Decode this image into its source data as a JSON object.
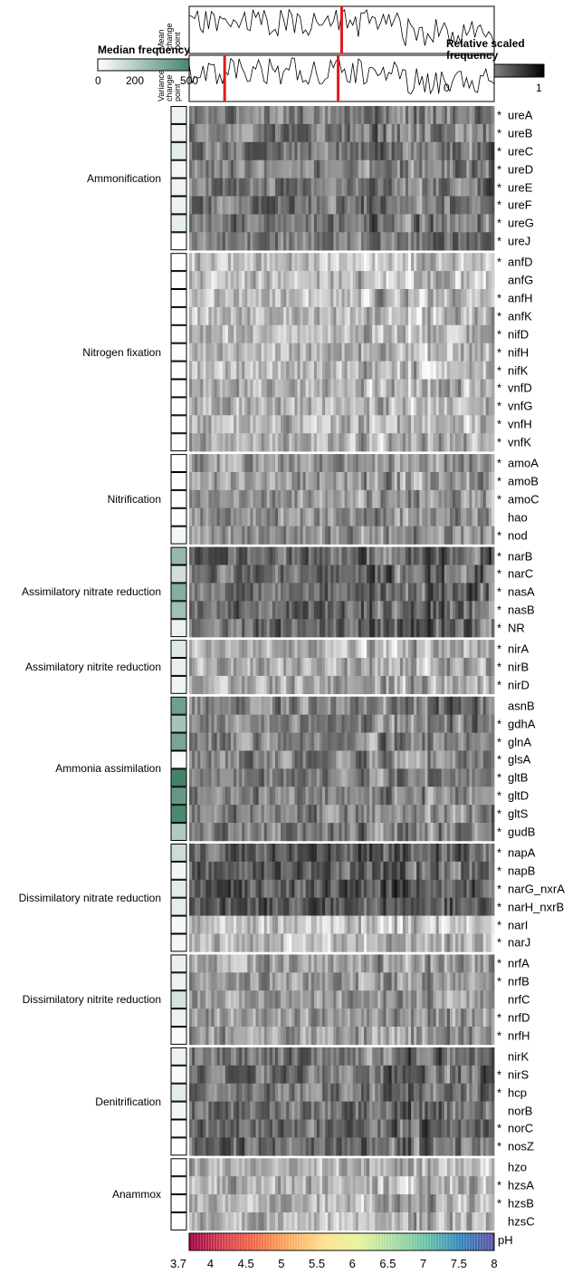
{
  "legends": {
    "median": {
      "title": "Median frequency",
      "ticks": [
        "0",
        "200",
        "500"
      ],
      "min": 0,
      "max": 600,
      "color_low": "#ffffff",
      "color_high": "#3f8064"
    },
    "relative": {
      "title": "Relative scaled frequency",
      "ticks": [
        "0",
        "1"
      ],
      "color_low": "#ffffff",
      "color_high": "#000000"
    }
  },
  "panels": {
    "mean": {
      "label": "Mean change point",
      "changepoints_ph": [
        5.85
      ]
    },
    "variance": {
      "label": "Variance change point",
      "changepoints_ph": [
        4.2,
        5.8
      ]
    }
  },
  "ph_axis": {
    "label": "pH",
    "ticks": [
      "3.7",
      "4",
      "4.5",
      "5",
      "5.5",
      "6",
      "6.5",
      "7",
      "7.5",
      "8"
    ],
    "min": 3.7,
    "max": 8
  },
  "chart_data": {
    "type": "heatmap",
    "x_variable": "pH",
    "groups": [
      {
        "name": "Ammonification",
        "genes": [
          {
            "name": "ureA",
            "sig": "*",
            "median": 60
          },
          {
            "name": "ureB",
            "sig": "*",
            "median": 50
          },
          {
            "name": "ureC",
            "sig": "*",
            "median": 90
          },
          {
            "name": "ureD",
            "sig": "*",
            "median": 40
          },
          {
            "name": "ureE",
            "sig": "*",
            "median": 50
          },
          {
            "name": "ureF",
            "sig": "*",
            "median": 60
          },
          {
            "name": "ureG",
            "sig": "*",
            "median": 80
          },
          {
            "name": "ureJ",
            "sig": "*",
            "median": 10
          }
        ]
      },
      {
        "name": "Nitrogen fixation",
        "genes": [
          {
            "name": "anfD",
            "sig": "*",
            "median": 5
          },
          {
            "name": "anfG",
            "sig": "",
            "median": 5
          },
          {
            "name": "anfH",
            "sig": "*",
            "median": 5
          },
          {
            "name": "anfK",
            "sig": "*",
            "median": 5
          },
          {
            "name": "nifD",
            "sig": "*",
            "median": 10
          },
          {
            "name": "nifH",
            "sig": "*",
            "median": 15
          },
          {
            "name": "nifK",
            "sig": "*",
            "median": 10
          },
          {
            "name": "vnfD",
            "sig": "*",
            "median": 5
          },
          {
            "name": "vnfG",
            "sig": "*",
            "median": 5
          },
          {
            "name": "vnfH",
            "sig": "*",
            "median": 5
          },
          {
            "name": "vnfK",
            "sig": "*",
            "median": 5
          }
        ]
      },
      {
        "name": "Nitrification",
        "genes": [
          {
            "name": "amoA",
            "sig": "*",
            "median": 10
          },
          {
            "name": "amoB",
            "sig": "*",
            "median": 10
          },
          {
            "name": "amoC",
            "sig": "*",
            "median": 10
          },
          {
            "name": "hao",
            "sig": "",
            "median": 5
          },
          {
            "name": "nod",
            "sig": "*",
            "median": 40
          }
        ]
      },
      {
        "name": "Assimilatory nitrate reduction",
        "genes": [
          {
            "name": "narB",
            "sig": "*",
            "median": 330
          },
          {
            "name": "narC",
            "sig": "*",
            "median": 150
          },
          {
            "name": "nasA",
            "sig": "*",
            "median": 380
          },
          {
            "name": "nasB",
            "sig": "*",
            "median": 300
          },
          {
            "name": "NR",
            "sig": "*",
            "median": 60
          }
        ]
      },
      {
        "name": "Assimilatory nitrite reduction",
        "genes": [
          {
            "name": "nirA",
            "sig": "*",
            "median": 100
          },
          {
            "name": "nirB",
            "sig": "*",
            "median": 70
          },
          {
            "name": "nirD",
            "sig": "*",
            "median": 50
          }
        ]
      },
      {
        "name": "Ammonia assimilation",
        "genes": [
          {
            "name": "asnB",
            "sig": "",
            "median": 450
          },
          {
            "name": "gdhA",
            "sig": "*",
            "median": 280
          },
          {
            "name": "glnA",
            "sig": "*",
            "median": 420
          },
          {
            "name": "glsA",
            "sig": "*",
            "median": 20
          },
          {
            "name": "gltB",
            "sig": "*",
            "median": 590
          },
          {
            "name": "gltD",
            "sig": "*",
            "median": 480
          },
          {
            "name": "gltS",
            "sig": "*",
            "median": 560
          },
          {
            "name": "gudB",
            "sig": "*",
            "median": 250
          }
        ]
      },
      {
        "name": "Dissimilatory nitrate reduction",
        "genes": [
          {
            "name": "napA",
            "sig": "*",
            "median": 160
          },
          {
            "name": "napB",
            "sig": "*",
            "median": 40
          },
          {
            "name": "narG_nxrA",
            "sig": "*",
            "median": 90
          },
          {
            "name": "narH_nxrB",
            "sig": "*",
            "median": 80
          },
          {
            "name": "narI",
            "sig": "*",
            "median": 30
          },
          {
            "name": "narJ",
            "sig": "*",
            "median": 40
          }
        ]
      },
      {
        "name": "Dissimilatory nitrite reduction",
        "genes": [
          {
            "name": "nrfA",
            "sig": "*",
            "median": 70
          },
          {
            "name": "nrfB",
            "sig": "*",
            "median": 60
          },
          {
            "name": "nrfC",
            "sig": "",
            "median": 130
          },
          {
            "name": "nrfD",
            "sig": "*",
            "median": 60
          },
          {
            "name": "nrfH",
            "sig": "*",
            "median": 20
          }
        ]
      },
      {
        "name": "Denitrification",
        "genes": [
          {
            "name": "nirK",
            "sig": "",
            "median": 60
          },
          {
            "name": "nirS",
            "sig": "*",
            "median": 20
          },
          {
            "name": "hcp",
            "sig": "*",
            "median": 90
          },
          {
            "name": "norB",
            "sig": "",
            "median": 40
          },
          {
            "name": "norC",
            "sig": "*",
            "median": 15
          },
          {
            "name": "nosZ",
            "sig": "*",
            "median": 10
          }
        ]
      },
      {
        "name": "Anammox",
        "genes": [
          {
            "name": "hzo",
            "sig": "",
            "median": 5
          },
          {
            "name": "hzsA",
            "sig": "*",
            "median": 10
          },
          {
            "name": "hzsB",
            "sig": "*",
            "median": 10
          },
          {
            "name": "hzsC",
            "sig": "",
            "median": 10
          }
        ]
      }
    ]
  }
}
